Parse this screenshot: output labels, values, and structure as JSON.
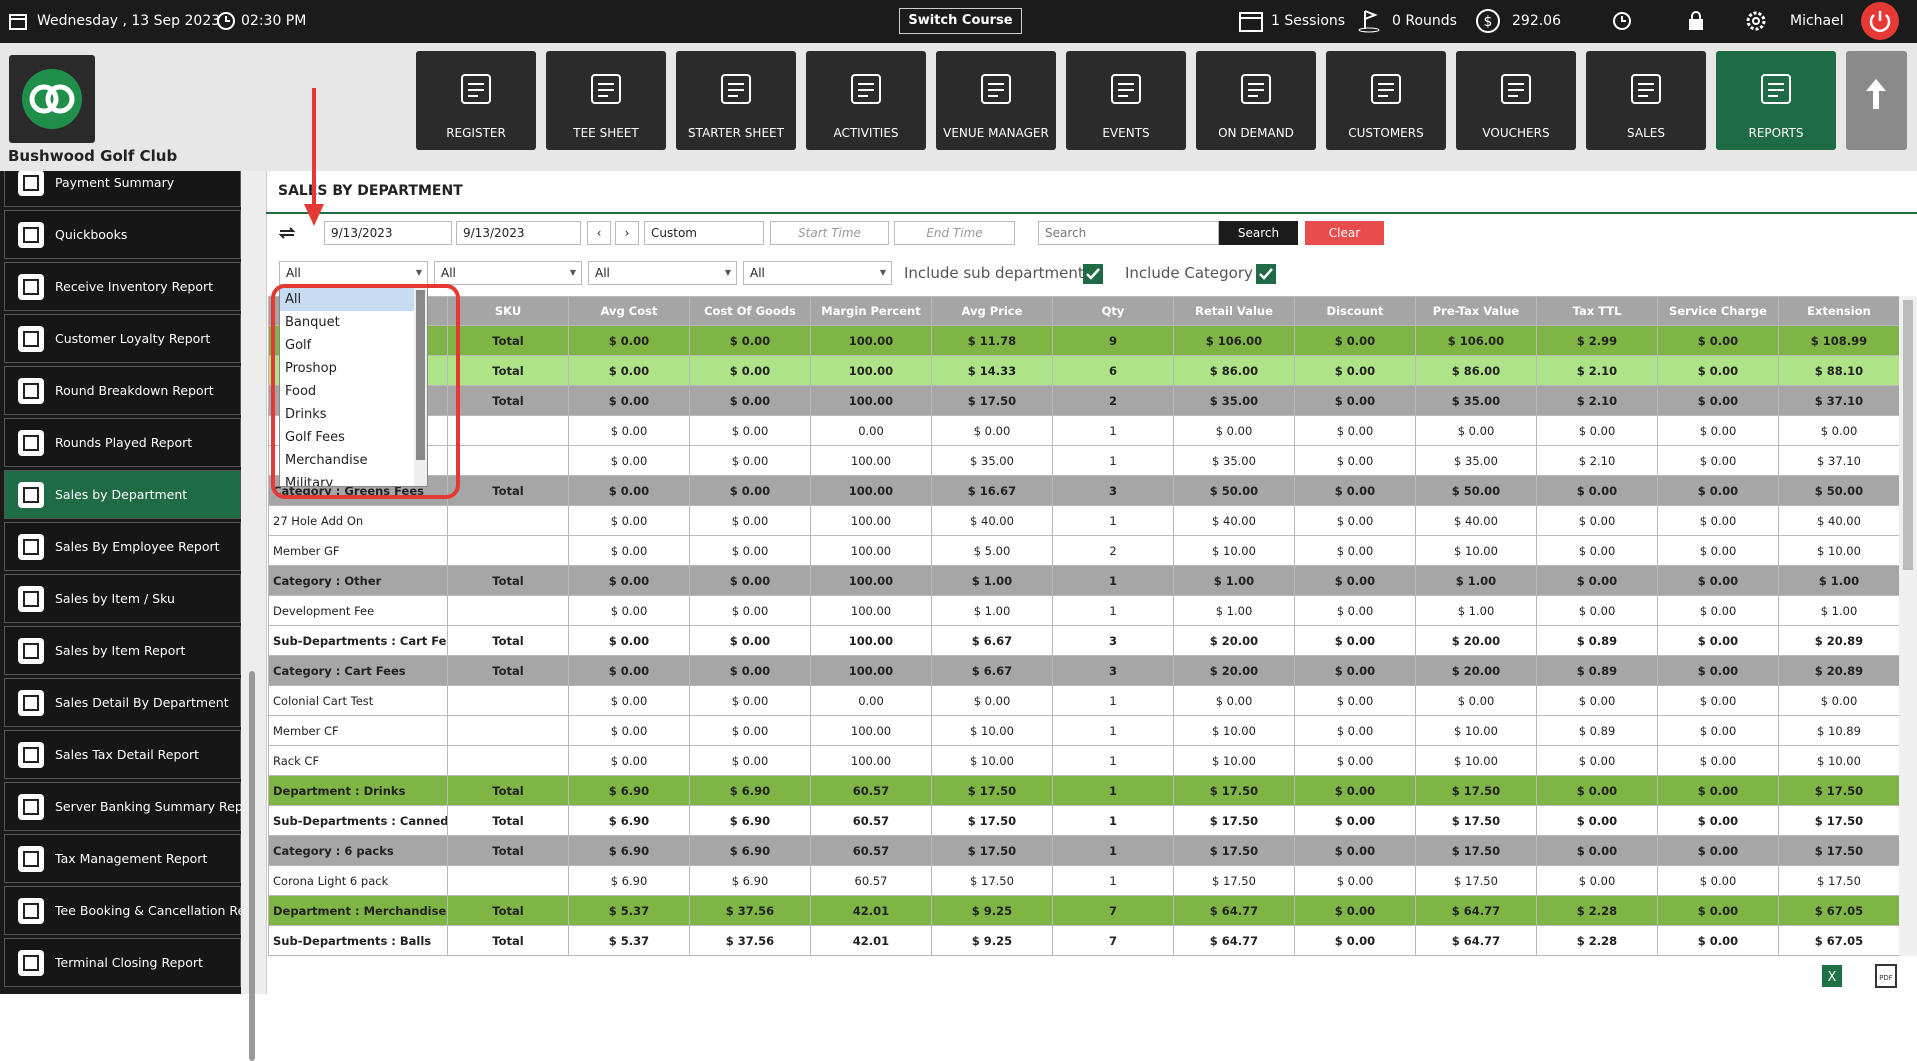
{
  "topbar": {
    "date": "Wednesday , 13 Sep 2023",
    "time": "02:30 PM",
    "switch_course": "Switch Course",
    "sessions": "1 Sessions",
    "rounds": "0 Rounds",
    "balance": "292.06",
    "user": "Michael"
  },
  "club_name": "Bushwood Golf Club",
  "nav": {
    "items": [
      "REGISTER",
      "TEE SHEET",
      "STARTER SHEET",
      "ACTIVITIES",
      "VENUE MANAGER",
      "EVENTS",
      "ON DEMAND",
      "CUSTOMERS",
      "VOUCHERS",
      "SALES",
      "REPORTS"
    ],
    "active": 10
  },
  "sidebar": {
    "items": [
      "Payment Summary",
      "Quickbooks",
      "Receive Inventory Report",
      "Customer Loyalty Report",
      "Round Breakdown Report",
      "Rounds Played Report",
      "Sales by Department",
      "Sales By Employee Report",
      "Sales by Item / Sku",
      "Sales by Item Report",
      "Sales Detail By Department",
      "Sales Tax Detail Report",
      "Server Banking Summary Report",
      "Tax Management Report",
      "Tee Booking & Cancellation Re...",
      "Terminal Closing Report"
    ],
    "active": 6
  },
  "report": {
    "title": "SALES BY DEPARTMENT",
    "start_date": "9/13/2023",
    "end_date": "9/13/2023",
    "period": "Custom",
    "start_time_placeholder": "Start Time",
    "end_time_placeholder": "End Time",
    "search_placeholder": "Search",
    "search_button": "Search",
    "clear_button": "Clear",
    "filters": [
      "All",
      "All",
      "All",
      "All"
    ],
    "include_sub_department": {
      "label": "Include sub department",
      "checked": true
    },
    "include_category": {
      "label": "Include Category",
      "checked": true
    },
    "dropdown": {
      "options": [
        "All",
        "Banquet",
        "Golf",
        "Proshop",
        "Food",
        "Drinks",
        "Golf Fees",
        "Merchandise",
        "Military"
      ],
      "selected": 0
    }
  },
  "table": {
    "columns": [
      "SKU",
      "Avg Cost",
      "Cost Of Goods",
      "Margin Percent",
      "Avg Price",
      "Qty",
      "Retail Value",
      "Discount",
      "Pre-Tax Value",
      "Tax TTL",
      "Service Charge",
      "Extension"
    ],
    "rows": [
      {
        "style": "department",
        "name": null,
        "cells": [
          "Total",
          "$ 0.00",
          "$ 0.00",
          "100.00",
          "$ 11.78",
          "9",
          "$ 106.00",
          "$ 0.00",
          "$ 106.00",
          "$ 2.99",
          "$ 0.00",
          "$ 108.99"
        ]
      },
      {
        "style": "sub-department",
        "name": null,
        "cells": [
          "Total",
          "$ 0.00",
          "$ 0.00",
          "100.00",
          "$ 14.33",
          "6",
          "$ 86.00",
          "$ 0.00",
          "$ 86.00",
          "$ 2.10",
          "$ 0.00",
          "$ 88.10"
        ]
      },
      {
        "style": "category",
        "name": null,
        "cells": [
          "Total",
          "$ 0.00",
          "$ 0.00",
          "100.00",
          "$ 17.50",
          "2",
          "$ 35.00",
          "$ 0.00",
          "$ 35.00",
          "$ 2.10",
          "$ 0.00",
          "$ 37.10"
        ]
      },
      {
        "style": "item",
        "name": null,
        "cells": [
          null,
          "$ 0.00",
          "$ 0.00",
          "0.00",
          "$ 0.00",
          "1",
          "$ 0.00",
          "$ 0.00",
          "$ 0.00",
          "$ 0.00",
          "$ 0.00",
          "$ 0.00"
        ]
      },
      {
        "style": "item",
        "name": null,
        "cells": [
          null,
          "$ 0.00",
          "$ 0.00",
          "100.00",
          "$ 35.00",
          "1",
          "$ 35.00",
          "$ 0.00",
          "$ 35.00",
          "$ 2.10",
          "$ 0.00",
          "$ 37.10"
        ]
      },
      {
        "style": "category",
        "name": "Category : Greens Fees",
        "cells": [
          "Total",
          "$ 0.00",
          "$ 0.00",
          "100.00",
          "$ 16.67",
          "3",
          "$ 50.00",
          "$ 0.00",
          "$ 50.00",
          "$ 0.00",
          "$ 0.00",
          "$ 50.00"
        ]
      },
      {
        "style": "item",
        "name": "27 Hole Add On",
        "cells": [
          null,
          "$ 0.00",
          "$ 0.00",
          "100.00",
          "$ 40.00",
          "1",
          "$ 40.00",
          "$ 0.00",
          "$ 40.00",
          "$ 0.00",
          "$ 0.00",
          "$ 40.00"
        ]
      },
      {
        "style": "item",
        "name": "Member GF",
        "cells": [
          null,
          "$ 0.00",
          "$ 0.00",
          "100.00",
          "$ 5.00",
          "2",
          "$ 10.00",
          "$ 0.00",
          "$ 10.00",
          "$ 0.00",
          "$ 0.00",
          "$ 10.00"
        ]
      },
      {
        "style": "category",
        "name": "Category : Other",
        "cells": [
          "Total",
          "$ 0.00",
          "$ 0.00",
          "100.00",
          "$ 1.00",
          "1",
          "$ 1.00",
          "$ 0.00",
          "$ 1.00",
          "$ 0.00",
          "$ 0.00",
          "$ 1.00"
        ]
      },
      {
        "style": "item",
        "name": "Development Fee",
        "cells": [
          null,
          "$ 0.00",
          "$ 0.00",
          "100.00",
          "$ 1.00",
          "1",
          "$ 1.00",
          "$ 0.00",
          "$ 1.00",
          "$ 0.00",
          "$ 0.00",
          "$ 1.00"
        ]
      },
      {
        "style": "subtotal",
        "name": "Sub-Departments : Cart Fees",
        "cells": [
          "Total",
          "$ 0.00",
          "$ 0.00",
          "100.00",
          "$ 6.67",
          "3",
          "$ 20.00",
          "$ 0.00",
          "$ 20.00",
          "$ 0.89",
          "$ 0.00",
          "$ 20.89"
        ]
      },
      {
        "style": "category",
        "name": "Category : Cart Fees",
        "cells": [
          "Total",
          "$ 0.00",
          "$ 0.00",
          "100.00",
          "$ 6.67",
          "3",
          "$ 20.00",
          "$ 0.00",
          "$ 20.00",
          "$ 0.89",
          "$ 0.00",
          "$ 20.89"
        ]
      },
      {
        "style": "item",
        "name": "Colonial Cart Test",
        "cells": [
          null,
          "$ 0.00",
          "$ 0.00",
          "0.00",
          "$ 0.00",
          "1",
          "$ 0.00",
          "$ 0.00",
          "$ 0.00",
          "$ 0.00",
          "$ 0.00",
          "$ 0.00"
        ]
      },
      {
        "style": "item",
        "name": "Member CF",
        "cells": [
          null,
          "$ 0.00",
          "$ 0.00",
          "100.00",
          "$ 10.00",
          "1",
          "$ 10.00",
          "$ 0.00",
          "$ 10.00",
          "$ 0.89",
          "$ 0.00",
          "$ 10.89"
        ]
      },
      {
        "style": "item",
        "name": "Rack CF",
        "cells": [
          null,
          "$ 0.00",
          "$ 0.00",
          "100.00",
          "$ 10.00",
          "1",
          "$ 10.00",
          "$ 0.00",
          "$ 10.00",
          "$ 0.00",
          "$ 0.00",
          "$ 10.00"
        ]
      },
      {
        "style": "department",
        "name": "Department : Drinks",
        "cells": [
          "Total",
          "$ 6.90",
          "$ 6.90",
          "60.57",
          "$ 17.50",
          "1",
          "$ 17.50",
          "$ 0.00",
          "$ 17.50",
          "$ 0.00",
          "$ 0.00",
          "$ 17.50"
        ]
      },
      {
        "style": "subtotal",
        "name": "Sub-Departments : Canned Beer",
        "cells": [
          "Total",
          "$ 6.90",
          "$ 6.90",
          "60.57",
          "$ 17.50",
          "1",
          "$ 17.50",
          "$ 0.00",
          "$ 17.50",
          "$ 0.00",
          "$ 0.00",
          "$ 17.50"
        ]
      },
      {
        "style": "category",
        "name": "Category : 6 packs",
        "cells": [
          "Total",
          "$ 6.90",
          "$ 6.90",
          "60.57",
          "$ 17.50",
          "1",
          "$ 17.50",
          "$ 0.00",
          "$ 17.50",
          "$ 0.00",
          "$ 0.00",
          "$ 17.50"
        ]
      },
      {
        "style": "item",
        "name": "Corona Light 6 pack",
        "cells": [
          null,
          "$ 6.90",
          "$ 6.90",
          "60.57",
          "$ 17.50",
          "1",
          "$ 17.50",
          "$ 0.00",
          "$ 17.50",
          "$ 0.00",
          "$ 0.00",
          "$ 17.50"
        ]
      },
      {
        "style": "department",
        "name": "Department : Merchandise",
        "cells": [
          "Total",
          "$ 5.37",
          "$ 37.56",
          "42.01",
          "$ 9.25",
          "7",
          "$ 64.77",
          "$ 0.00",
          "$ 64.77",
          "$ 2.28",
          "$ 0.00",
          "$ 67.05"
        ]
      },
      {
        "style": "subtotal",
        "name": "Sub-Departments : Balls",
        "cells": [
          "Total",
          "$ 5.37",
          "$ 37.56",
          "42.01",
          "$ 9.25",
          "7",
          "$ 64.77",
          "$ 0.00",
          "$ 64.77",
          "$ 2.28",
          "$ 0.00",
          "$ 67.05"
        ]
      }
    ]
  }
}
